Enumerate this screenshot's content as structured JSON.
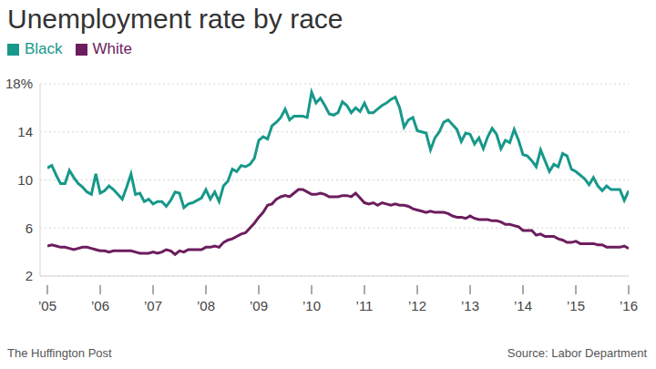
{
  "chart_data": {
    "type": "line",
    "title": "Unemployment rate by race",
    "annotations": [
      "The Huffington Post",
      "Source: Labor Department"
    ],
    "legend": "top-left",
    "grid": true,
    "categories": [
      "’05",
      null,
      null,
      null,
      null,
      null,
      null,
      null,
      null,
      null,
      null,
      null,
      "’06",
      null,
      null,
      null,
      null,
      null,
      null,
      null,
      null,
      null,
      null,
      null,
      "’07",
      null,
      null,
      null,
      null,
      null,
      null,
      null,
      null,
      null,
      null,
      null,
      "’08",
      null,
      null,
      null,
      null,
      null,
      null,
      null,
      null,
      null,
      null,
      null,
      "’09",
      null,
      null,
      null,
      null,
      null,
      null,
      null,
      null,
      null,
      null,
      null,
      "’10",
      null,
      null,
      null,
      null,
      null,
      null,
      null,
      null,
      null,
      null,
      null,
      "’11",
      null,
      null,
      null,
      null,
      null,
      null,
      null,
      null,
      null,
      null,
      null,
      "’12",
      null,
      null,
      null,
      null,
      null,
      null,
      null,
      null,
      null,
      null,
      null,
      "’13",
      null,
      null,
      null,
      null,
      null,
      null,
      null,
      null,
      null,
      null,
      null,
      "’14",
      null,
      null,
      null,
      null,
      null,
      null,
      null,
      null,
      null,
      null,
      null,
      "’15",
      null,
      null,
      null,
      null,
      null,
      null,
      null,
      null,
      null,
      null,
      null,
      "’16"
    ],
    "ylim": [
      2,
      18
    ],
    "yticks": [
      2,
      6,
      10,
      14,
      {
        "value": 18,
        "label": "18%"
      }
    ],
    "series": [
      {
        "name": "Black",
        "color": "#17988a",
        "values": [
          11.0,
          11.2,
          10.4,
          9.7,
          9.7,
          10.8,
          10.2,
          9.7,
          9.4,
          9.0,
          8.8,
          10.5,
          8.9,
          9.1,
          9.5,
          9.2,
          8.8,
          8.4,
          9.4,
          10.5,
          8.8,
          8.9,
          8.2,
          8.4,
          8.0,
          8.2,
          8.2,
          7.8,
          8.3,
          9.0,
          8.9,
          7.7,
          8.0,
          8.1,
          8.3,
          8.5,
          9.2,
          8.4,
          9.0,
          8.2,
          9.5,
          9.9,
          10.9,
          10.7,
          11.2,
          11.1,
          11.3,
          11.8,
          13.3,
          13.6,
          13.4,
          14.5,
          14.8,
          15.2,
          15.9,
          15.0,
          15.3,
          15.3,
          15.3,
          15.2,
          17.3,
          16.4,
          16.8,
          16.2,
          15.5,
          15.4,
          15.6,
          16.5,
          16.2,
          15.6,
          16.0,
          15.7,
          16.4,
          15.6,
          15.6,
          15.9,
          16.2,
          16.4,
          16.7,
          16.9,
          16.0,
          14.4,
          15.0,
          15.2,
          14.1,
          14.0,
          13.9,
          12.5,
          13.5,
          14.0,
          14.8,
          15.0,
          14.6,
          14.2,
          13.2,
          13.9,
          13.8,
          13.0,
          13.5,
          12.6,
          13.6,
          14.3,
          13.8,
          12.6,
          13.3,
          13.1,
          14.2,
          13.3,
          12.1,
          12.0,
          11.6,
          11.1,
          12.5,
          11.6,
          10.7,
          11.3,
          11.1,
          12.2,
          12.0,
          10.9,
          10.7,
          10.4,
          10.1,
          9.6,
          10.2,
          9.5,
          9.1,
          9.5,
          9.2,
          9.2,
          9.2,
          8.3,
          9.1
        ]
      },
      {
        "name": "White",
        "color": "#6c1d5e",
        "values": [
          4.5,
          4.6,
          4.5,
          4.4,
          4.4,
          4.3,
          4.2,
          4.3,
          4.4,
          4.4,
          4.3,
          4.2,
          4.1,
          4.1,
          4.0,
          4.1,
          4.1,
          4.1,
          4.1,
          4.1,
          4.0,
          3.9,
          3.9,
          3.9,
          4.0,
          3.9,
          4.0,
          4.2,
          4.1,
          3.8,
          4.1,
          4.0,
          4.2,
          4.2,
          4.2,
          4.2,
          4.4,
          4.4,
          4.5,
          4.4,
          4.8,
          5.0,
          5.1,
          5.3,
          5.5,
          5.6,
          6.0,
          6.4,
          6.9,
          7.3,
          7.9,
          8.0,
          8.4,
          8.6,
          8.7,
          8.6,
          8.9,
          9.2,
          9.2,
          9.0,
          8.8,
          8.8,
          8.9,
          8.8,
          8.6,
          8.6,
          8.6,
          8.7,
          8.7,
          8.6,
          8.9,
          8.5,
          8.1,
          8.0,
          8.1,
          7.9,
          8.1,
          8.0,
          7.9,
          8.0,
          7.9,
          7.9,
          7.8,
          7.6,
          7.5,
          7.4,
          7.3,
          7.4,
          7.3,
          7.3,
          7.3,
          7.2,
          7.0,
          6.9,
          6.9,
          6.8,
          7.0,
          6.8,
          6.7,
          6.7,
          6.7,
          6.6,
          6.6,
          6.5,
          6.3,
          6.3,
          6.2,
          6.1,
          5.8,
          5.8,
          5.8,
          5.4,
          5.5,
          5.3,
          5.3,
          5.3,
          5.1,
          5.0,
          4.8,
          4.8,
          4.9,
          4.7,
          4.7,
          4.7,
          4.7,
          4.6,
          4.6,
          4.4,
          4.4,
          4.4,
          4.4,
          4.5,
          4.3
        ]
      }
    ]
  }
}
